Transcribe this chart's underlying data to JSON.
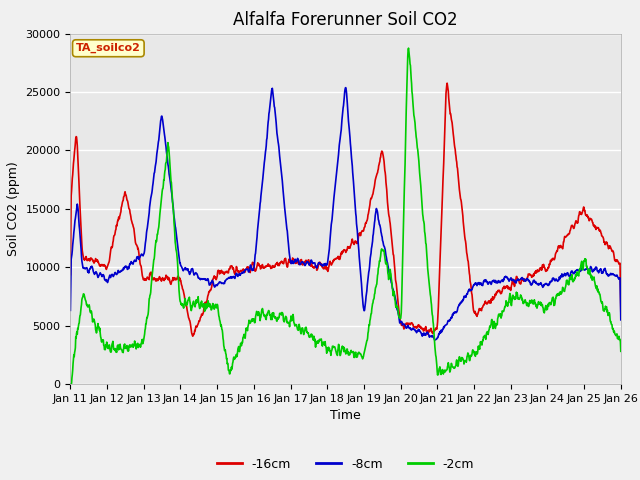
{
  "title": "Alfalfa Forerunner Soil CO2",
  "xlabel": "Time",
  "ylabel": "Soil CO2 (ppm)",
  "ylim": [
    0,
    30000
  ],
  "yticks": [
    0,
    5000,
    10000,
    15000,
    20000,
    25000,
    30000
  ],
  "legend_label": "TA_soilco2",
  "series_labels": [
    "-16cm",
    "-8cm",
    "-2cm"
  ],
  "series_colors": [
    "#dd0000",
    "#0000cc",
    "#00cc00"
  ],
  "line_width": 1.2,
  "fig_bg_color": "#f0f0f0",
  "plot_bg_color": "#e8e8e8",
  "xtick_labels": [
    "Jan 11",
    "Jan 12",
    "Jan 13",
    "Jan 14",
    "Jan 15",
    "Jan 16",
    "Jan 17",
    "Jan 18",
    "Jan 19",
    "Jan 20",
    "Jan 21",
    "Jan 22",
    "Jan 23",
    "Jan 24",
    "Jan 25",
    "Jan 26"
  ],
  "title_fontsize": 12,
  "axis_label_fontsize": 9,
  "tick_fontsize": 8,
  "legend_fontsize": 9
}
